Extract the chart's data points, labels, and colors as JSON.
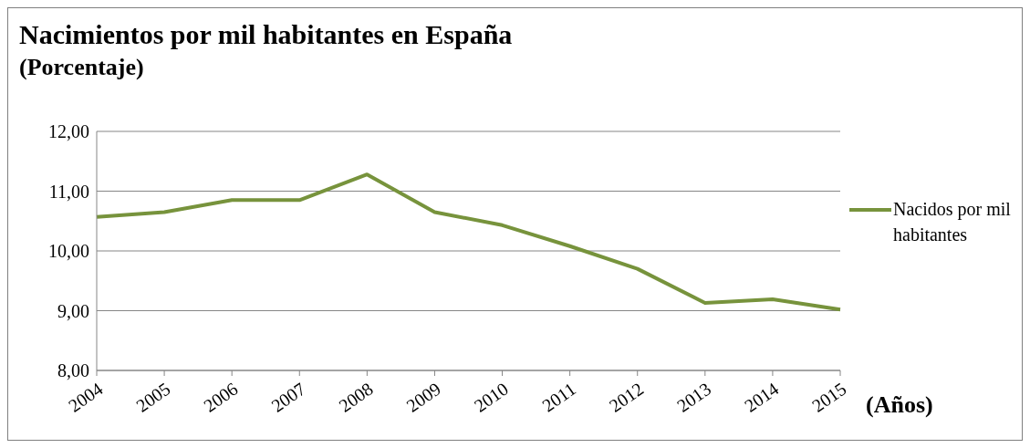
{
  "chart_data": {
    "type": "line",
    "title": "Nacimientos por mil habitantes en España",
    "subtitle": "(Porcentaje)",
    "xlabel": "(Años)",
    "categories": [
      "2004",
      "2005",
      "2006",
      "2007",
      "2008",
      "2009",
      "2010",
      "2011",
      "2012",
      "2013",
      "2014",
      "2015"
    ],
    "series": [
      {
        "name": "Nacidos por mil habitantes",
        "color": "#77933c",
        "values": [
          10.57,
          10.65,
          10.85,
          10.85,
          11.28,
          10.65,
          10.43,
          10.08,
          9.7,
          9.13,
          9.19,
          9.02
        ]
      }
    ],
    "ylim": [
      8,
      12
    ],
    "yticks": [
      {
        "value": 8,
        "label": "8,00"
      },
      {
        "value": 9,
        "label": "9,00"
      },
      {
        "value": 10,
        "label": "10,00"
      },
      {
        "value": 11,
        "label": "11,00"
      },
      {
        "value": 12,
        "label": "12,00"
      }
    ],
    "grid": "y",
    "legend": "right",
    "marker": "none",
    "line_style": "solid"
  }
}
